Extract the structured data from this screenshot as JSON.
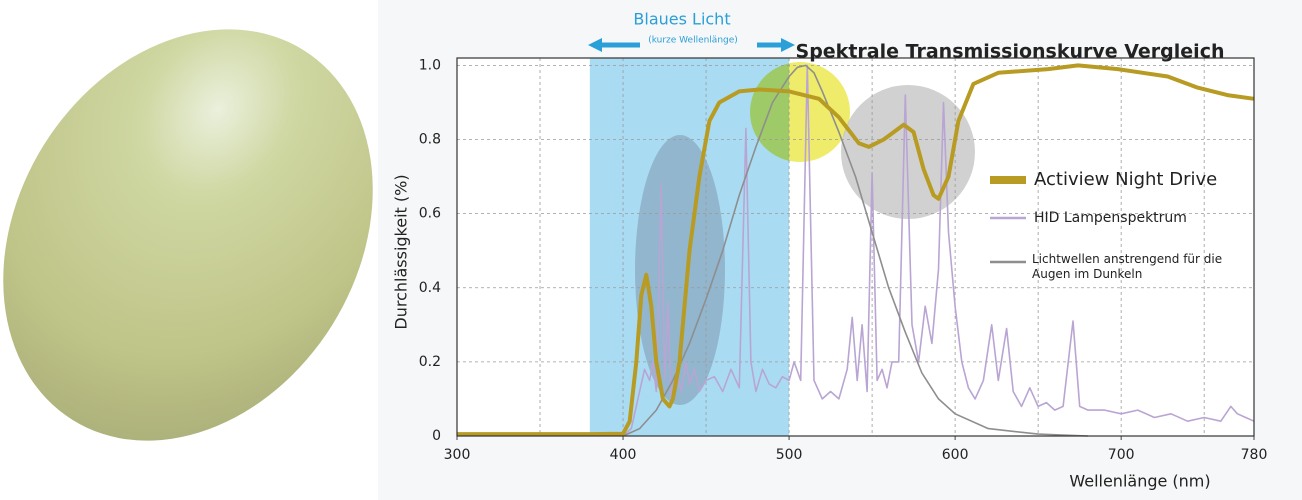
{
  "chart_data": {
    "type": "line",
    "title": "Spektrale Transmissionskurve Vergleich",
    "annotation": {
      "text": "Blaues Licht",
      "subtext": "(kurze Wellenlänge)",
      "color": "#2a9fd8"
    },
    "x_label": "Wellenlänge (nm)",
    "y_label": "Durchlässigkeit (%)",
    "xlim": [
      300,
      780
    ],
    "ylim": [
      0,
      1.02
    ],
    "xticks": [
      300,
      400,
      500,
      600,
      700,
      780
    ],
    "xgrid": [
      350,
      400,
      450,
      500,
      550,
      600,
      650,
      700,
      750
    ],
    "yticks": [
      0,
      0.2,
      0.4,
      0.6,
      0.8,
      {
        "value": 1,
        "label": "1.0"
      }
    ],
    "grid": true,
    "legend": "center-right",
    "band": {
      "xlim": [
        380,
        500
      ],
      "color": "#a9dcf3"
    },
    "series": [
      {
        "name": "Actiview  Night Drive",
        "color": "#b89b22",
        "width": 4,
        "x": [
          300,
          380,
          400,
          404,
          408,
          411,
          414,
          417,
          420,
          424,
          428,
          430,
          434,
          440,
          446,
          452,
          458,
          470,
          482,
          500,
          518,
          530,
          542,
          548,
          557,
          569,
          575,
          581,
          587,
          590,
          596,
          602,
          611,
          626,
          656,
          674,
          698,
          728,
          746,
          764,
          780
        ],
        "values": [
          0.005,
          0.005,
          0.006,
          0.04,
          0.2,
          0.38,
          0.435,
          0.35,
          0.2,
          0.1,
          0.08,
          0.1,
          0.2,
          0.5,
          0.7,
          0.85,
          0.9,
          0.93,
          0.935,
          0.93,
          0.91,
          0.86,
          0.79,
          0.78,
          0.8,
          0.84,
          0.82,
          0.72,
          0.65,
          0.64,
          0.7,
          0.85,
          0.95,
          0.98,
          0.99,
          1.0,
          0.99,
          0.97,
          0.94,
          0.92,
          0.91
        ]
      },
      {
        "name": "HID Lampenspektrum",
        "color": "#b9a5d3",
        "width": 1.6,
        "x": [
          400,
          405,
          410,
          413,
          416,
          418,
          420,
          423,
          425,
          427,
          429,
          432,
          435,
          438,
          440,
          443,
          446,
          450,
          455,
          460,
          465,
          470,
          474,
          477,
          480,
          484,
          488,
          492,
          496,
          500,
          503,
          507,
          511,
          515,
          520,
          525,
          530,
          535,
          538,
          541,
          544,
          547,
          550,
          553,
          556,
          559,
          562,
          566,
          570,
          574,
          578,
          582,
          586,
          590,
          593,
          596,
          600,
          604,
          608,
          612,
          617,
          622,
          626,
          631,
          635,
          640,
          645,
          650,
          655,
          660,
          665,
          671,
          675,
          680,
          690,
          700,
          710,
          720,
          730,
          740,
          750,
          760,
          766,
          770,
          775,
          780
        ],
        "values": [
          0,
          0.02,
          0.12,
          0.18,
          0.15,
          0.2,
          0.12,
          0.68,
          0.15,
          0.36,
          0.1,
          0.18,
          0.12,
          0.2,
          0.14,
          0.18,
          0.12,
          0.15,
          0.16,
          0.12,
          0.18,
          0.13,
          0.83,
          0.2,
          0.12,
          0.18,
          0.14,
          0.13,
          0.16,
          0.15,
          0.2,
          0.15,
          1.0,
          0.15,
          0.1,
          0.12,
          0.1,
          0.18,
          0.32,
          0.15,
          0.3,
          0.12,
          0.71,
          0.15,
          0.18,
          0.13,
          0.2,
          0.2,
          0.92,
          0.3,
          0.2,
          0.35,
          0.25,
          0.45,
          0.9,
          0.55,
          0.35,
          0.2,
          0.13,
          0.1,
          0.15,
          0.3,
          0.15,
          0.29,
          0.12,
          0.08,
          0.13,
          0.08,
          0.09,
          0.07,
          0.08,
          0.31,
          0.08,
          0.07,
          0.07,
          0.06,
          0.07,
          0.05,
          0.06,
          0.04,
          0.05,
          0.04,
          0.08,
          0.06,
          0.05,
          0.04
        ]
      },
      {
        "name": "Lichtwellen anstrengend für die Augen im Dunkeln",
        "color": "#8e8e8e",
        "width": 1.6,
        "x": [
          400,
          410,
          420,
          430,
          440,
          450,
          460,
          470,
          480,
          490,
          500,
          505,
          510,
          515,
          520,
          530,
          540,
          550,
          560,
          570,
          580,
          590,
          600,
          620,
          650,
          680
        ],
        "values": [
          0,
          0.02,
          0.07,
          0.15,
          0.25,
          0.37,
          0.5,
          0.65,
          0.78,
          0.9,
          0.97,
          0.995,
          1.0,
          0.98,
          0.93,
          0.82,
          0.7,
          0.55,
          0.4,
          0.28,
          0.17,
          0.1,
          0.06,
          0.02,
          0.005,
          0
        ]
      }
    ]
  }
}
